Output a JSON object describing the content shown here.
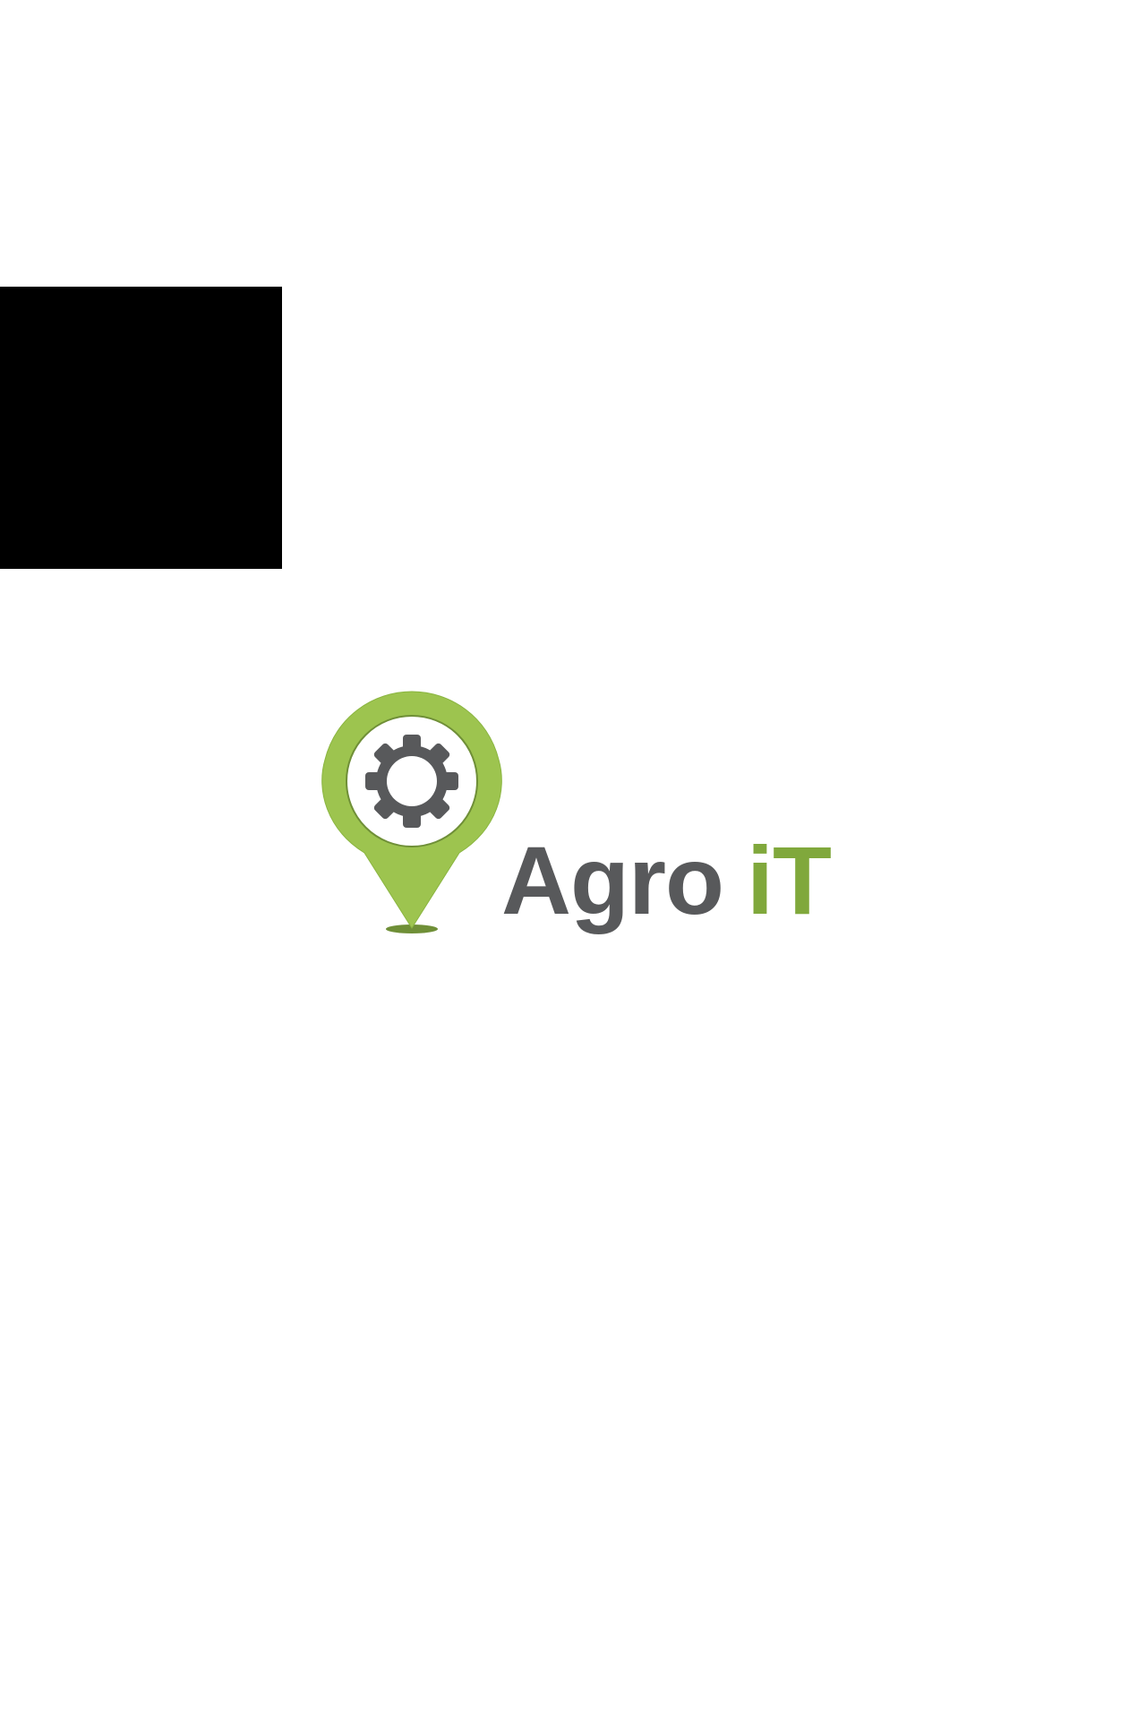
{
  "brand": {
    "name_part1": "Agro",
    "name_part2": "iT"
  },
  "colors": {
    "background": "#ffffff",
    "block": "#000000",
    "pin_green": "#9dc44f",
    "pin_outline": "#6f8f37",
    "gear_gray": "#58595b",
    "text_gray": "#58595b",
    "text_green": "#80a83c"
  },
  "icons": {
    "pin": "location-pin-icon",
    "gear": "gear-icon"
  }
}
